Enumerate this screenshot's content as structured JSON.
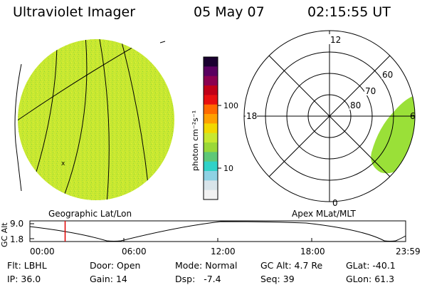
{
  "header": {
    "title": "Ultraviolet Imager",
    "date": "05 May 07",
    "time": "02:15:55 UT"
  },
  "colorbar": {
    "label": "photon cm⁻²s⁻¹",
    "ticks": [
      "100",
      "10"
    ],
    "colors": [
      "#1a0030",
      "#5a0060",
      "#8b0050",
      "#c00018",
      "#e81010",
      "#ff6a00",
      "#ffa000",
      "#f2d800",
      "#c8e830",
      "#9ad838",
      "#5ec878",
      "#2fd2c8",
      "#8ed2e4",
      "#d8e4ea",
      "#f2f2f2"
    ]
  },
  "left_panel": {
    "caption": "Geographic Lat/Lon",
    "disk_color": "#c8e830",
    "marker": "x"
  },
  "right_panel": {
    "caption": "Apex MLat/MLT",
    "mlt_labels": {
      "top": "12",
      "left": "18",
      "right": "6",
      "bottom": "0"
    },
    "lat_labels": [
      "60",
      "70",
      "80"
    ],
    "patch_color": "#9ae038"
  },
  "plot": {
    "ylabel": "GC Alt",
    "yticks": [
      "9.0",
      "1.8"
    ],
    "xticks": [
      "00:00",
      "06:00",
      "12:00",
      "18:00",
      "23:59"
    ],
    "current_time_marker": "02:15",
    "marker_color": "#e00000"
  },
  "footer": {
    "row1": [
      {
        "key": "Flt:",
        "value": "LBHL"
      },
      {
        "key": "Door:",
        "value": "Open"
      },
      {
        "key": "Mode:",
        "value": "Normal"
      },
      {
        "key": "GC Alt:",
        "value": "4.7 Re"
      },
      {
        "key": "GLat:",
        "value": "-40.1"
      }
    ],
    "row2": [
      {
        "key": "IP:",
        "value": "36.0"
      },
      {
        "key": "Gain:",
        "value": "14"
      },
      {
        "key": "Dsp:",
        "value": "-7.4"
      },
      {
        "key": "Seq:",
        "value": "39"
      },
      {
        "key": "GLon:",
        "value": "61.3"
      }
    ]
  }
}
